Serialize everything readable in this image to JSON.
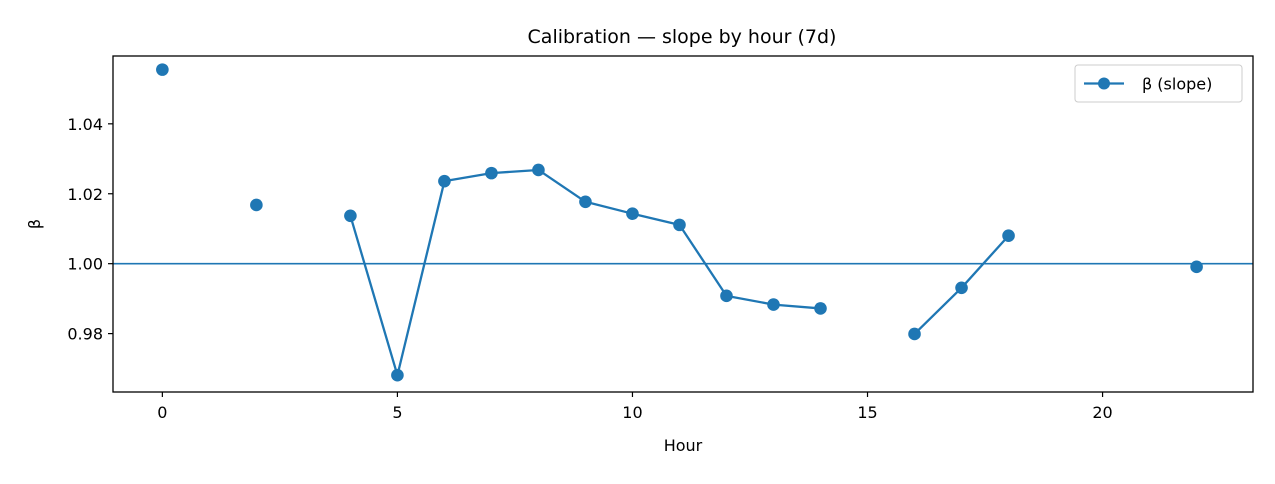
{
  "chart_data": {
    "type": "line",
    "title": "Calibration — slope by hour (7d)",
    "xlabel": "Hour",
    "ylabel": "β",
    "xlim": [
      -1.05,
      23.2
    ],
    "ylim": [
      0.9633,
      1.0594
    ],
    "xticks": [
      0,
      5,
      10,
      15,
      20
    ],
    "yticks": [
      0.98,
      1.0,
      1.02,
      1.04
    ],
    "xtick_labels": [
      "0",
      "5",
      "10",
      "15",
      "20"
    ],
    "ytick_labels": [
      "0.98",
      "1.00",
      "1.02",
      "1.04"
    ],
    "grid": false,
    "legend_position": "top-right",
    "reference_line": {
      "y": 1.0
    },
    "series": [
      {
        "name": "β (slope)",
        "color": "#1f77b4",
        "points": [
          {
            "x": 0,
            "y": 1.0555
          },
          {
            "x": 1,
            "y": null
          },
          {
            "x": 2,
            "y": 1.0168
          },
          {
            "x": 3,
            "y": null
          },
          {
            "x": 4,
            "y": 1.0137
          },
          {
            "x": 5,
            "y": 0.9681
          },
          {
            "x": 6,
            "y": 1.0236
          },
          {
            "x": 7,
            "y": 1.0259
          },
          {
            "x": 8,
            "y": 1.0268
          },
          {
            "x": 9,
            "y": 1.0177
          },
          {
            "x": 10,
            "y": 1.0143
          },
          {
            "x": 11,
            "y": 1.0111
          },
          {
            "x": 12,
            "y": 0.9908
          },
          {
            "x": 13,
            "y": 0.9883
          },
          {
            "x": 14,
            "y": 0.9872
          },
          {
            "x": 15,
            "y": null
          },
          {
            "x": 16,
            "y": 0.9799
          },
          {
            "x": 17,
            "y": 0.9931
          },
          {
            "x": 18,
            "y": 1.008
          },
          {
            "x": 19,
            "y": null
          },
          {
            "x": 20,
            "y": null
          },
          {
            "x": 21,
            "y": null
          },
          {
            "x": 22,
            "y": 0.9991
          }
        ]
      }
    ]
  }
}
